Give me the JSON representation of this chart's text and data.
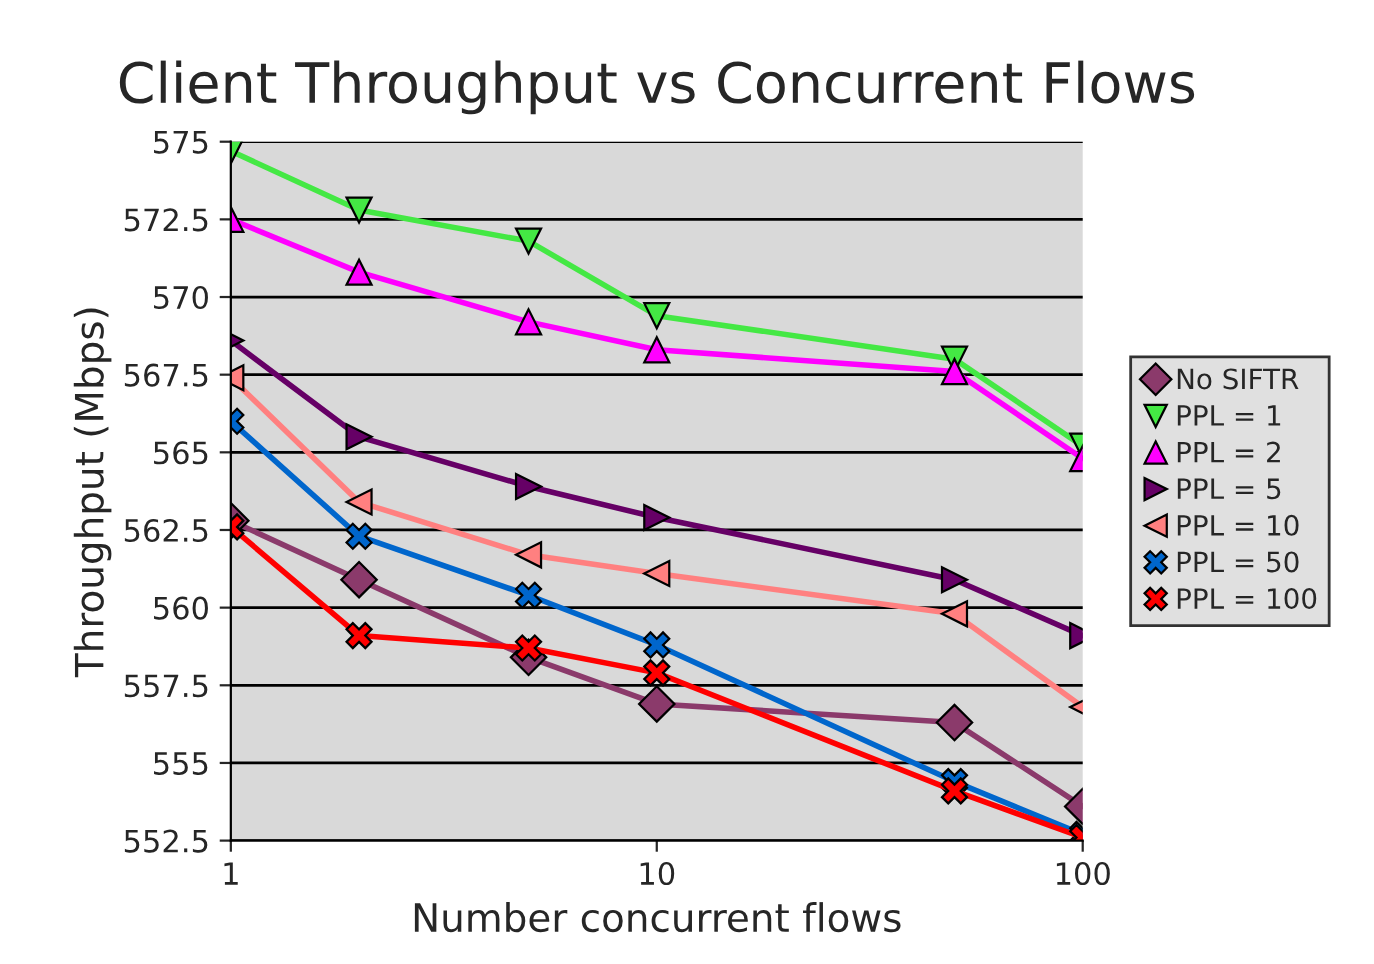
{
  "chart_data": {
    "type": "line",
    "title": "Client Throughput vs Concurrent Flows",
    "xlabel": "Number concurrent flows",
    "ylabel": "Throughput (Mbps)",
    "x": [
      1,
      2,
      5,
      10,
      50,
      100
    ],
    "series": [
      {
        "name": "No SIFTR",
        "color": "#8b3a6b",
        "marker": "diamond",
        "values": [
          562.8,
          560.9,
          558.4,
          556.9,
          556.3,
          553.6
        ]
      },
      {
        "name": "PPL = 1",
        "color": "#44e844",
        "marker": "triangle_down",
        "values": [
          574.7,
          572.8,
          571.8,
          569.4,
          568.0,
          565.2
        ]
      },
      {
        "name": "PPL = 2",
        "color": "#ff00ff",
        "marker": "triangle",
        "values": [
          572.5,
          570.8,
          569.2,
          568.3,
          567.6,
          564.8
        ]
      },
      {
        "name": "PPL = 5",
        "color": "#660066",
        "marker": "triangle_right",
        "values": [
          568.6,
          565.5,
          563.9,
          562.9,
          560.9,
          559.1
        ]
      },
      {
        "name": "PPL = 10",
        "color": "#ff8080",
        "marker": "triangle_left",
        "values": [
          567.4,
          563.4,
          561.7,
          561.1,
          559.8,
          556.8
        ]
      },
      {
        "name": "PPL = 50",
        "color": "#0066cc",
        "marker": "cross",
        "values": [
          566.0,
          562.3,
          560.4,
          558.8,
          554.4,
          552.7
        ]
      },
      {
        "name": "PPL = 100",
        "color": "#ff0000",
        "marker": "cross",
        "values": [
          562.6,
          559.1,
          558.7,
          557.9,
          554.1,
          552.6
        ]
      }
    ],
    "log": "x",
    "xlim": [
      1,
      100
    ],
    "xticks": [
      1,
      10,
      100
    ],
    "ylim": [
      552.5,
      575
    ],
    "yticks": [
      552.5,
      555,
      557.5,
      560,
      562.5,
      565,
      567.5,
      570,
      572.5,
      575
    ],
    "grid": "y",
    "legend": "right",
    "line_style": "solid"
  }
}
